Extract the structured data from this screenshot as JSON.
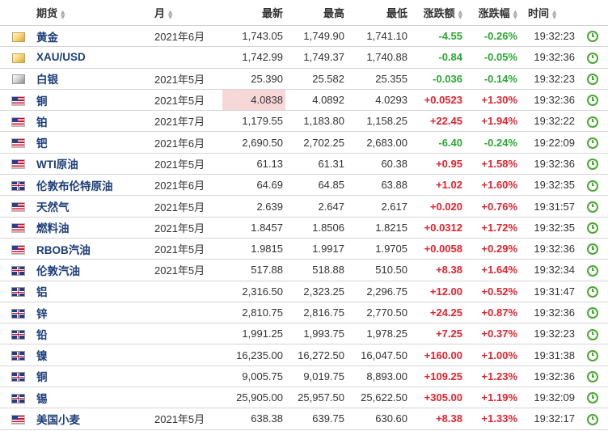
{
  "headers": {
    "futures": "期货",
    "month": "月",
    "latest": "最新",
    "high": "最高",
    "low": "最低",
    "change": "涨跌额",
    "change_pct": "涨跌幅",
    "time": "时间"
  },
  "rows": [
    {
      "flag": "gold",
      "name": "黄金",
      "month": "2021年6月",
      "latest": "1,743.05",
      "high": "1,749.90",
      "low": "1,741.10",
      "change": "-4.55",
      "pct": "-0.26%",
      "time": "19:32:23",
      "dir": "down",
      "hl": false
    },
    {
      "flag": "gold",
      "name": "XAU/USD",
      "month": "",
      "latest": "1,742.99",
      "high": "1,749.37",
      "low": "1,740.88",
      "change": "-0.84",
      "pct": "-0.05%",
      "time": "19:32:36",
      "dir": "down",
      "hl": false
    },
    {
      "flag": "silver",
      "name": "白银",
      "month": "2021年5月",
      "latest": "25.390",
      "high": "25.582",
      "low": "25.355",
      "change": "-0.036",
      "pct": "-0.14%",
      "time": "19:32:23",
      "dir": "down",
      "hl": false
    },
    {
      "flag": "us",
      "name": "铜",
      "month": "2021年5月",
      "latest": "4.0838",
      "high": "4.0892",
      "low": "4.0293",
      "change": "+0.0523",
      "pct": "+1.30%",
      "time": "19:32:36",
      "dir": "up",
      "hl": true
    },
    {
      "flag": "us",
      "name": "铂",
      "month": "2021年7月",
      "latest": "1,179.55",
      "high": "1,183.80",
      "low": "1,158.25",
      "change": "+22.45",
      "pct": "+1.94%",
      "time": "19:32:22",
      "dir": "up",
      "hl": false
    },
    {
      "flag": "us",
      "name": "钯",
      "month": "2021年6月",
      "latest": "2,690.50",
      "high": "2,702.25",
      "low": "2,683.00",
      "change": "-6.40",
      "pct": "-0.24%",
      "time": "19:22:09",
      "dir": "down",
      "hl": false
    },
    {
      "flag": "us",
      "name": "WTI原油",
      "month": "2021年5月",
      "latest": "61.13",
      "high": "61.31",
      "low": "60.38",
      "change": "+0.95",
      "pct": "+1.58%",
      "time": "19:32:36",
      "dir": "up",
      "hl": false
    },
    {
      "flag": "uk",
      "name": "伦敦布伦特原油",
      "month": "2021年6月",
      "latest": "64.69",
      "high": "64.85",
      "low": "63.88",
      "change": "+1.02",
      "pct": "+1.60%",
      "time": "19:32:35",
      "dir": "up",
      "hl": false
    },
    {
      "flag": "us",
      "name": "天然气",
      "month": "2021年5月",
      "latest": "2.639",
      "high": "2.647",
      "low": "2.617",
      "change": "+0.020",
      "pct": "+0.76%",
      "time": "19:31:57",
      "dir": "up",
      "hl": false
    },
    {
      "flag": "us",
      "name": "燃料油",
      "month": "2021年5月",
      "latest": "1.8457",
      "high": "1.8506",
      "low": "1.8215",
      "change": "+0.0312",
      "pct": "+1.72%",
      "time": "19:32:35",
      "dir": "up",
      "hl": false
    },
    {
      "flag": "us",
      "name": "RBOB汽油",
      "month": "2021年5月",
      "latest": "1.9815",
      "high": "1.9917",
      "low": "1.9705",
      "change": "+0.0058",
      "pct": "+0.29%",
      "time": "19:32:36",
      "dir": "up",
      "hl": false
    },
    {
      "flag": "uk",
      "name": "伦敦汽油",
      "month": "2021年5月",
      "latest": "517.88",
      "high": "518.88",
      "low": "510.50",
      "change": "+8.38",
      "pct": "+1.64%",
      "time": "19:32:34",
      "dir": "up",
      "hl": false
    },
    {
      "flag": "uk",
      "name": "铝",
      "month": "",
      "latest": "2,316.50",
      "high": "2,323.25",
      "low": "2,296.75",
      "change": "+12.00",
      "pct": "+0.52%",
      "time": "19:31:47",
      "dir": "up",
      "hl": false
    },
    {
      "flag": "uk",
      "name": "锌",
      "month": "",
      "latest": "2,810.75",
      "high": "2,816.75",
      "low": "2,770.50",
      "change": "+24.25",
      "pct": "+0.87%",
      "time": "19:32:36",
      "dir": "up",
      "hl": false
    },
    {
      "flag": "uk",
      "name": "铅",
      "month": "",
      "latest": "1,991.25",
      "high": "1,993.75",
      "low": "1,978.25",
      "change": "+7.25",
      "pct": "+0.37%",
      "time": "19:32:23",
      "dir": "up",
      "hl": false
    },
    {
      "flag": "uk",
      "name": "镍",
      "month": "",
      "latest": "16,235.00",
      "high": "16,272.50",
      "low": "16,047.50",
      "change": "+160.00",
      "pct": "+1.00%",
      "time": "19:31:38",
      "dir": "up",
      "hl": false
    },
    {
      "flag": "uk",
      "name": "铜",
      "month": "",
      "latest": "9,005.75",
      "high": "9,019.75",
      "low": "8,893.00",
      "change": "+109.25",
      "pct": "+1.23%",
      "time": "19:32:36",
      "dir": "up",
      "hl": false
    },
    {
      "flag": "uk",
      "name": "锡",
      "month": "",
      "latest": "25,905.00",
      "high": "25,957.50",
      "low": "25,622.50",
      "change": "+305.00",
      "pct": "+1.19%",
      "time": "19:32:09",
      "dir": "up",
      "hl": false
    },
    {
      "flag": "us",
      "name": "美国小麦",
      "month": "2021年5月",
      "latest": "638.38",
      "high": "639.75",
      "low": "630.60",
      "change": "+8.38",
      "pct": "+1.33%",
      "time": "19:32:17",
      "dir": "up",
      "hl": false
    }
  ]
}
